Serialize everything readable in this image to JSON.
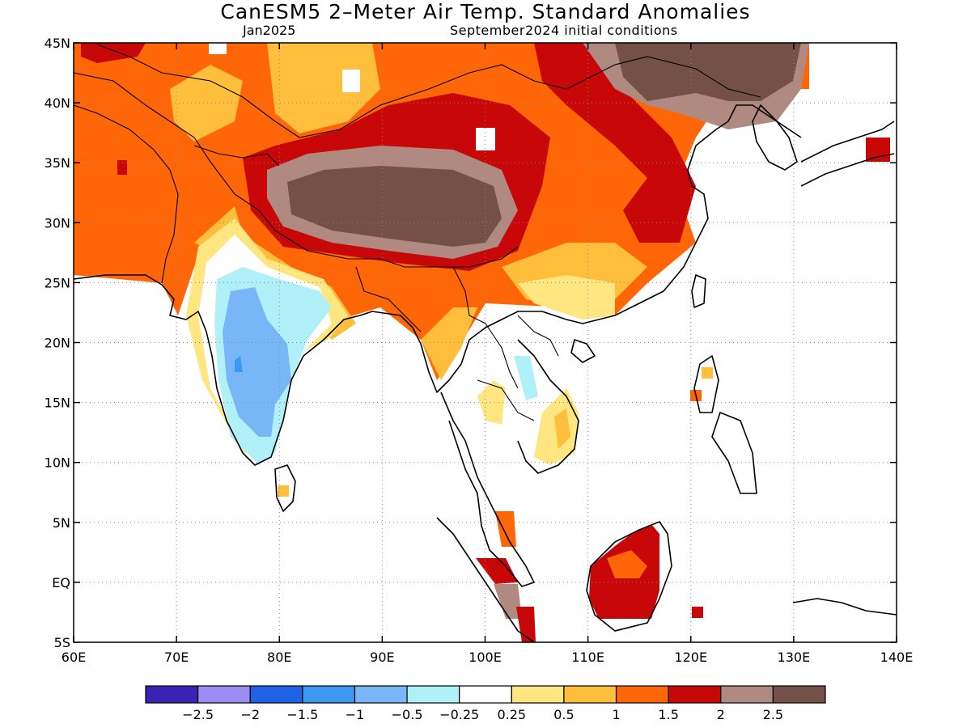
{
  "title": "CanESM5 2–Meter Air Temp. Standard Anomalies",
  "subtitle_left": "Jan2025",
  "subtitle_right": "September2024 initial conditions",
  "map": {
    "lon_range": [
      60,
      140
    ],
    "lat_range": [
      -5,
      45
    ],
    "lon_ticks": [
      {
        "value": 60,
        "label": "60E"
      },
      {
        "value": 70,
        "label": "70E"
      },
      {
        "value": 80,
        "label": "80E"
      },
      {
        "value": 90,
        "label": "90E"
      },
      {
        "value": 100,
        "label": "100E"
      },
      {
        "value": 110,
        "label": "110E"
      },
      {
        "value": 120,
        "label": "120E"
      },
      {
        "value": 130,
        "label": "130E"
      },
      {
        "value": 140,
        "label": "140E"
      }
    ],
    "lat_ticks": [
      {
        "value": 45,
        "label": "45N"
      },
      {
        "value": 40,
        "label": "40N"
      },
      {
        "value": 35,
        "label": "35N"
      },
      {
        "value": 30,
        "label": "30N"
      },
      {
        "value": 25,
        "label": "25N"
      },
      {
        "value": 20,
        "label": "20N"
      },
      {
        "value": 15,
        "label": "15N"
      },
      {
        "value": 10,
        "label": "10N"
      },
      {
        "value": 5,
        "label": "5N"
      },
      {
        "value": 0,
        "label": "EQ"
      },
      {
        "value": -5,
        "label": "5S"
      }
    ],
    "grid": true
  },
  "colorbar": {
    "colors": [
      "#3a22b4",
      "#9c8cf4",
      "#2062e6",
      "#3c98f0",
      "#78b6f8",
      "#b0f0f8",
      "#ffffff",
      "#ffe680",
      "#ffbe3c",
      "#ff6608",
      "#c80808",
      "#b08a80",
      "#745048"
    ],
    "labels": [
      "−2.5",
      "−2",
      "−1.5",
      "−1",
      "−0.5",
      "−0.25",
      "0.25",
      "0.5",
      "1",
      "1.5",
      "2",
      "2.5"
    ]
  }
}
